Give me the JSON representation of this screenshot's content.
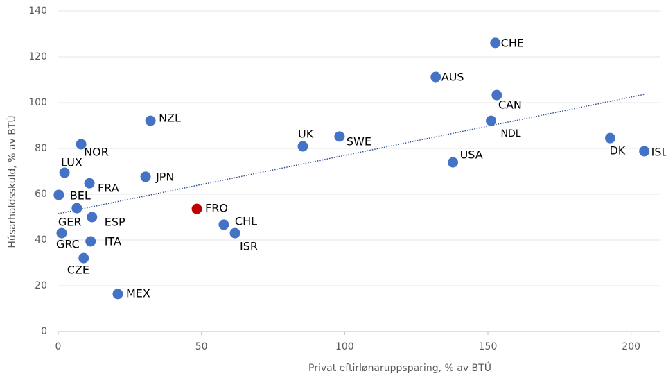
{
  "chart_data": {
    "type": "scatter",
    "xlabel": "Privat eftirlønaruppsparing, % av BTÚ",
    "ylabel": "Húsarhaldsskuld, % av BTÚ",
    "xlim": [
      0,
      210
    ],
    "xticks": [
      0,
      50,
      100,
      150,
      200
    ],
    "ylim": [
      0,
      140
    ],
    "yticks": [
      0,
      20,
      40,
      60,
      80,
      100,
      120,
      140
    ],
    "grid": true,
    "labels": [
      "CHE",
      "AUS",
      "CAN",
      "NDL",
      "NZL",
      "UK",
      "SWE",
      "USA",
      "DK",
      "ISL",
      "NOR",
      "LUX",
      "FRA",
      "JPN",
      "BEL",
      "FRO",
      "GER",
      "ESP",
      "CHL",
      "ISR",
      "GRC",
      "ITA",
      "CZE",
      "MEX"
    ],
    "x": [
      152.6,
      131.8,
      153.1,
      151.1,
      32.2,
      85.4,
      98.2,
      137.8,
      192.7,
      204.6,
      8.0,
      2.2,
      10.9,
      30.5,
      0.2,
      48.4,
      6.5,
      11.8,
      57.8,
      61.7,
      1.2,
      11.3,
      8.9,
      20.8
    ],
    "y": [
      126.1,
      111.2,
      103.3,
      92.1,
      92.1,
      80.9,
      85.2,
      73.9,
      84.5,
      78.8,
      81.8,
      69.4,
      64.8,
      67.6,
      59.7,
      53.6,
      53.9,
      50.0,
      46.7,
      43.0,
      43.0,
      39.4,
      32.1,
      16.4
    ],
    "colors": [
      "#4472c4",
      "#4472c4",
      "#4472c4",
      "#4472c4",
      "#4472c4",
      "#4472c4",
      "#4472c4",
      "#4472c4",
      "#4472c4",
      "#4472c4",
      "#4472c4",
      "#4472c4",
      "#4472c4",
      "#4472c4",
      "#4472c4",
      "#c00000",
      "#4472c4",
      "#4472c4",
      "#4472c4",
      "#4472c4",
      "#4472c4",
      "#4472c4",
      "#4472c4",
      "#4472c4"
    ],
    "trendline": {
      "color": "#2f4f8f",
      "x": [
        0,
        204.6
      ],
      "y": [
        51.5,
        103.6
      ]
    }
  }
}
